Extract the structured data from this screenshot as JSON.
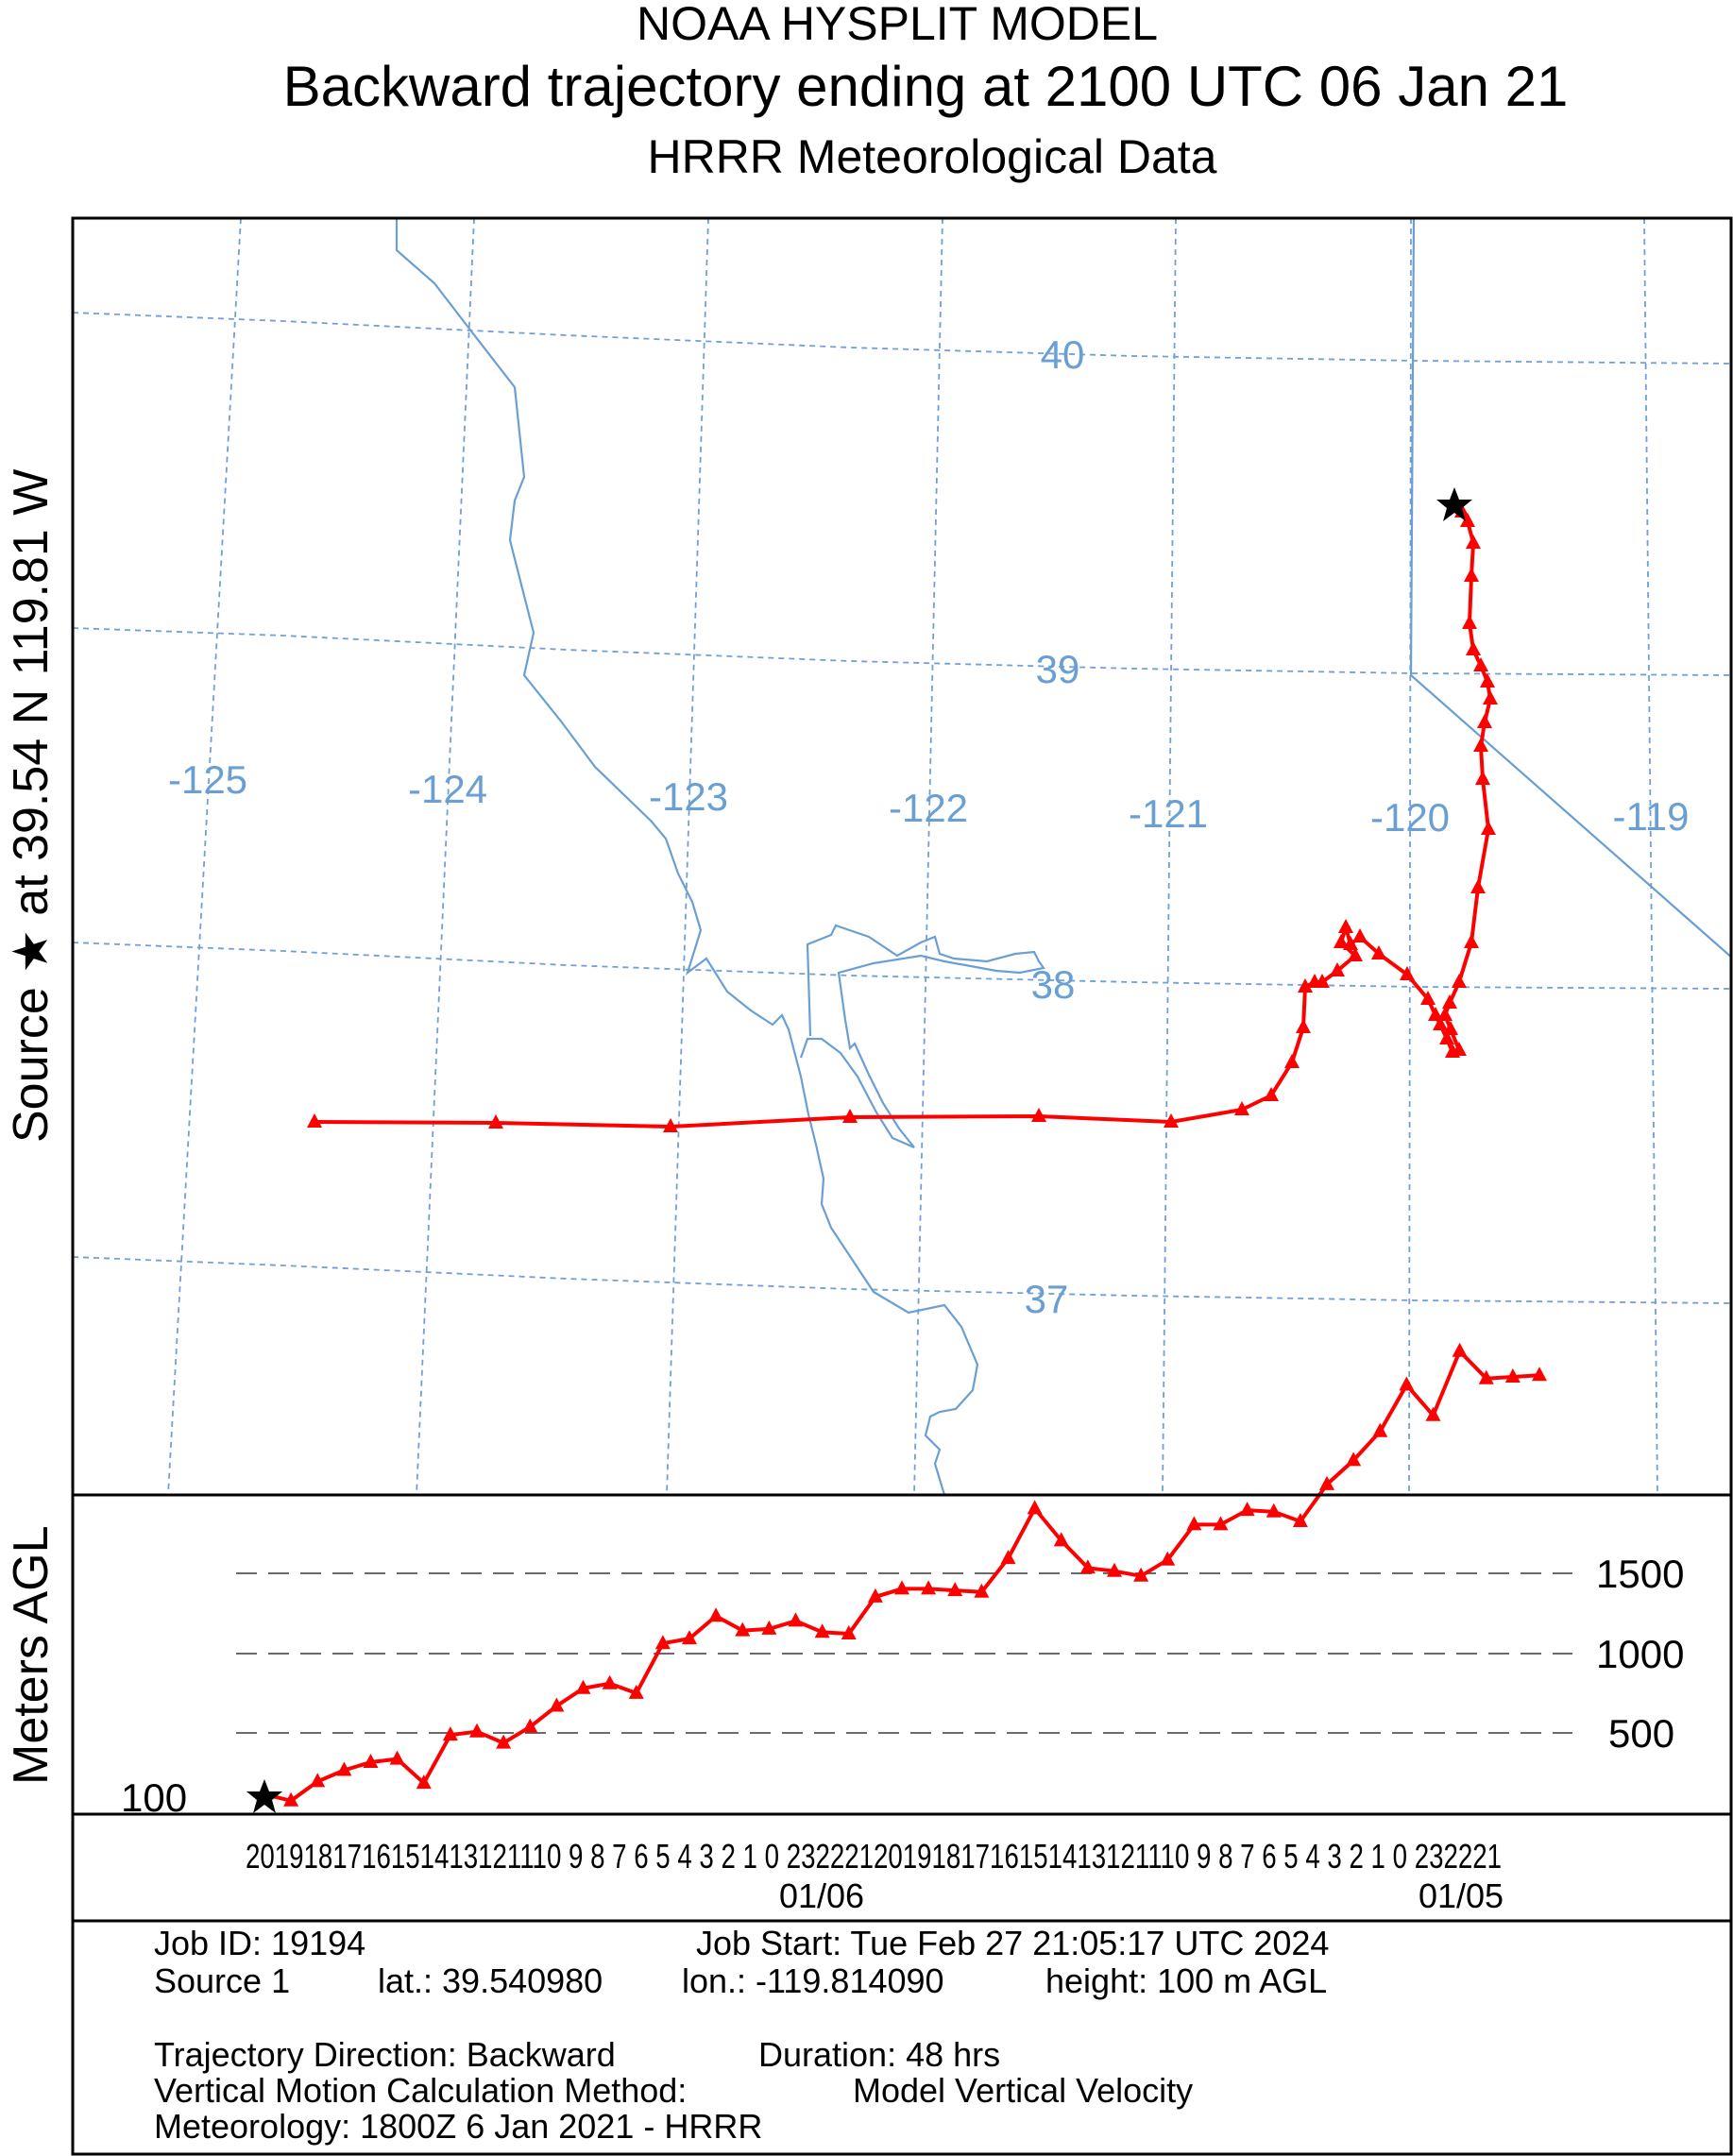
{
  "header": {
    "line1": "NOAA HYSPLIT MODEL",
    "line2": "Backward trajectory ending at 2100 UTC 06 Jan 21",
    "line3": "HRRR Meteorological Data"
  },
  "side_label": "Source ★ at   39.54 N  119.81 W",
  "map": {
    "lat_labels": [
      "40",
      "39",
      "38",
      "37"
    ],
    "lon_labels": [
      "-125",
      "-124",
      "-123",
      "-122",
      "-121",
      "-120",
      "-119"
    ],
    "colors": {
      "grid": "#6fa0d8",
      "coast": "#6a9fd4",
      "trajectory": "#ff0000"
    },
    "source_marker_icon": "star-icon"
  },
  "height_panel": {
    "ylabel": "Meters AGL",
    "ticks": [
      "1500",
      "1000",
      "500"
    ],
    "source_height_label": "100",
    "hour_labels": "2019181716151413121110 9 8 7 6 5 4 3 2 1 0 2322212019181716151413121110 9 8 7 6 5 4 3 2 1 0 232221",
    "dates": [
      "01/06",
      "01/05"
    ]
  },
  "info": {
    "job_id": "Job ID: 19194",
    "job_start": "Job Start: Tue Feb 27 21:05:17 UTC 2024",
    "source": "Source 1",
    "lat": "lat.: 39.540980",
    "lon": "lon.: -119.814090",
    "height": "height: 100 m AGL",
    "direction": "Trajectory Direction: Backward",
    "duration": "Duration: 48 hrs",
    "vertical_method_label": "Vertical Motion Calculation Method:",
    "vertical_method_value": "Model Vertical Velocity",
    "meteorology": "Meteorology: 1800Z 6 Jan 2021 - HRRR"
  },
  "chart_data": {
    "type": "line",
    "series": [
      {
        "name": "",
        "x": [
          0,
          1,
          2,
          3,
          4,
          5,
          6,
          7,
          8,
          9,
          10,
          11,
          12,
          13,
          14,
          15,
          16,
          17,
          18,
          19,
          20,
          21,
          22,
          23,
          24,
          25,
          26,
          27,
          28,
          29,
          30,
          31,
          32,
          33,
          34,
          35,
          36,
          37,
          38,
          39,
          40,
          41,
          42,
          43,
          44,
          45,
          46,
          47,
          48
        ],
        "values": [
          100,
          60,
          180,
          250,
          300,
          320,
          170,
          470,
          490,
          420,
          520,
          650,
          760,
          790,
          730,
          1040,
          1070,
          1210,
          1120,
          1130,
          1180,
          1110,
          1100,
          1330,
          1380,
          1380,
          1370,
          1360,
          1570,
          1880,
          1680,
          1510,
          1490,
          1460,
          1560,
          1780,
          1780,
          1870,
          1860,
          1800,
          2030,
          2180,
          2360,
          2650,
          2460,
          2860,
          2690,
          2700,
          2710
        ]
      }
    ],
    "xlabel": "",
    "ylabel": "Meters AGL",
    "yticks": [
      500,
      1000,
      1500
    ]
  }
}
